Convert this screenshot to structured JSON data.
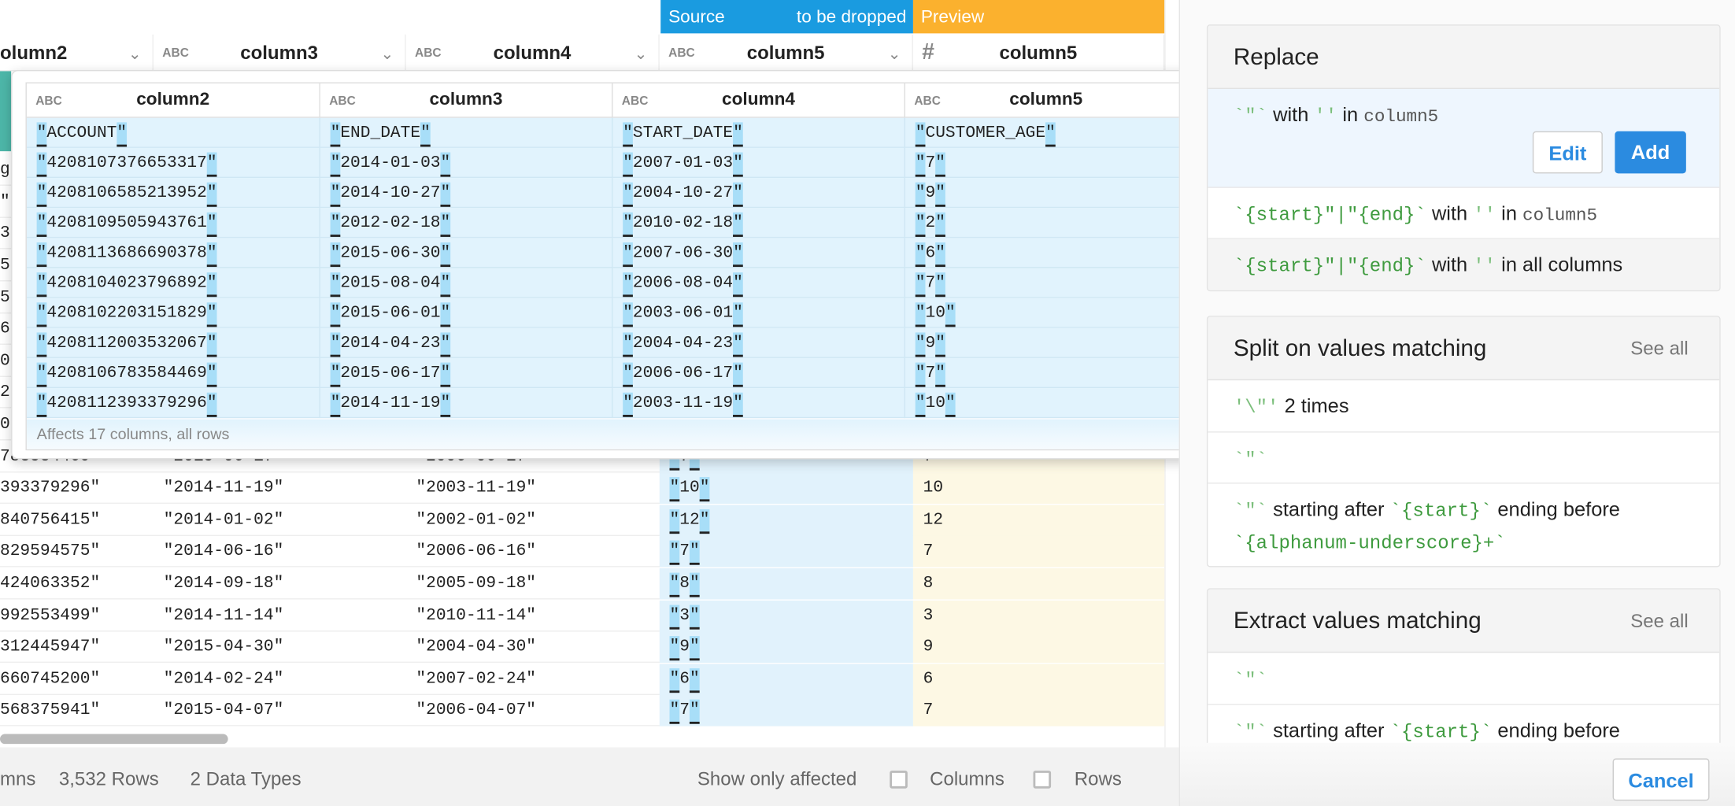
{
  "colors": {
    "source": "#1a9be0",
    "preview": "#fbb12e",
    "accent": "#2b8be0",
    "code": "#3f9b3f"
  },
  "bands": {
    "source": "Source",
    "to_be_dropped": "to be dropped",
    "preview": "Preview"
  },
  "columns": [
    {
      "name": "olumn2",
      "type": "ABC"
    },
    {
      "name": "column3",
      "type": "ABC"
    },
    {
      "name": "column4",
      "type": "ABC"
    },
    {
      "name": "column5",
      "type": "ABC"
    },
    {
      "name": "column5",
      "type": "#"
    }
  ],
  "hidden_row_edges": [
    "g",
    "\"",
    "3",
    "5",
    "5",
    "6",
    "0",
    "2",
    "0"
  ],
  "rows": [
    [
      "783584469\"",
      "\"2015-06-17\"",
      "\"2006-06-17\"",
      "7",
      "7"
    ],
    [
      "393379296\"",
      "\"2014-11-19\"",
      "\"2003-11-19\"",
      "10",
      "10"
    ],
    [
      "840756415\"",
      "\"2014-01-02\"",
      "\"2002-01-02\"",
      "12",
      "12"
    ],
    [
      "829594575\"",
      "\"2014-06-16\"",
      "\"2006-06-16\"",
      "7",
      "7"
    ],
    [
      "424063352\"",
      "\"2014-09-18\"",
      "\"2005-09-18\"",
      "8",
      "8"
    ],
    [
      "992553499\"",
      "\"2014-11-14\"",
      "\"2010-11-14\"",
      "3",
      "3"
    ],
    [
      "312445947\"",
      "\"2015-04-30\"",
      "\"2004-04-30\"",
      "9",
      "9"
    ],
    [
      "660745200\"",
      "\"2014-02-24\"",
      "\"2007-02-24\"",
      "6",
      "6"
    ],
    [
      "568375941\"",
      "\"2015-04-07\"",
      "\"2006-04-07\"",
      "7",
      "7"
    ]
  ],
  "popup": {
    "type_label": "ABC",
    "columns": [
      "column2",
      "column3",
      "column4",
      "column5"
    ],
    "rows": [
      [
        "ACCOUNT",
        "END_DATE",
        "START_DATE",
        "CUSTOMER_AGE"
      ],
      [
        "4208107376653317",
        "2014-01-03",
        "2007-01-03",
        "7"
      ],
      [
        "4208106585213952",
        "2014-10-27",
        "2004-10-27",
        "9"
      ],
      [
        "4208109505943761",
        "2012-02-18",
        "2010-02-18",
        "2"
      ],
      [
        "4208113686690378",
        "2015-06-30",
        "2007-06-30",
        "6"
      ],
      [
        "4208104023796892",
        "2015-08-04",
        "2006-08-04",
        "7"
      ],
      [
        "4208102203151829",
        "2015-06-01",
        "2003-06-01",
        "10"
      ],
      [
        "4208112003532067",
        "2014-04-23",
        "2004-04-23",
        "9"
      ],
      [
        "4208106783584469",
        "2015-06-17",
        "2006-06-17",
        "7"
      ],
      [
        "4208112393379296",
        "2014-11-19",
        "2003-11-19",
        "10"
      ]
    ],
    "footer": "Affects 17 columns, all rows"
  },
  "footer": {
    "columns_partial": "mns",
    "rows": "3,532 Rows",
    "types": "2 Data Types",
    "show_only": "Show only affected",
    "columns_label": "Columns",
    "rows_label": "Rows"
  },
  "panel": {
    "replace": {
      "title": "Replace",
      "items": [
        {
          "code": "`\"`",
          "with": "with",
          "repl": "''",
          "in": "in",
          "col": "column5"
        },
        {
          "code": "`{start}\"|\"{end}`",
          "with": "with",
          "repl": "''",
          "in": "in",
          "col": "column5"
        },
        {
          "code": "`{start}\"|\"{end}`",
          "with": "with",
          "repl": "''",
          "in": "in all columns"
        }
      ],
      "edit": "Edit",
      "add": "Add"
    },
    "split": {
      "title": "Split on values matching",
      "see_all": "See all",
      "items": [
        {
          "code": "'\\\"'",
          "text": "2 times"
        },
        {
          "code": "`\"`"
        },
        {
          "code": "`\"`",
          "text": "starting after",
          "code2": "`{start}`",
          "text2": "ending before",
          "code3": "`{alphanum-underscore}+`"
        }
      ]
    },
    "extract": {
      "title": "Extract values matching",
      "see_all": "See all",
      "items": [
        {
          "code": "`\"`"
        },
        {
          "code": "`\"`",
          "text": "starting after",
          "code2": "`{start}`",
          "text2": "ending before"
        }
      ]
    },
    "cancel": "Cancel"
  }
}
